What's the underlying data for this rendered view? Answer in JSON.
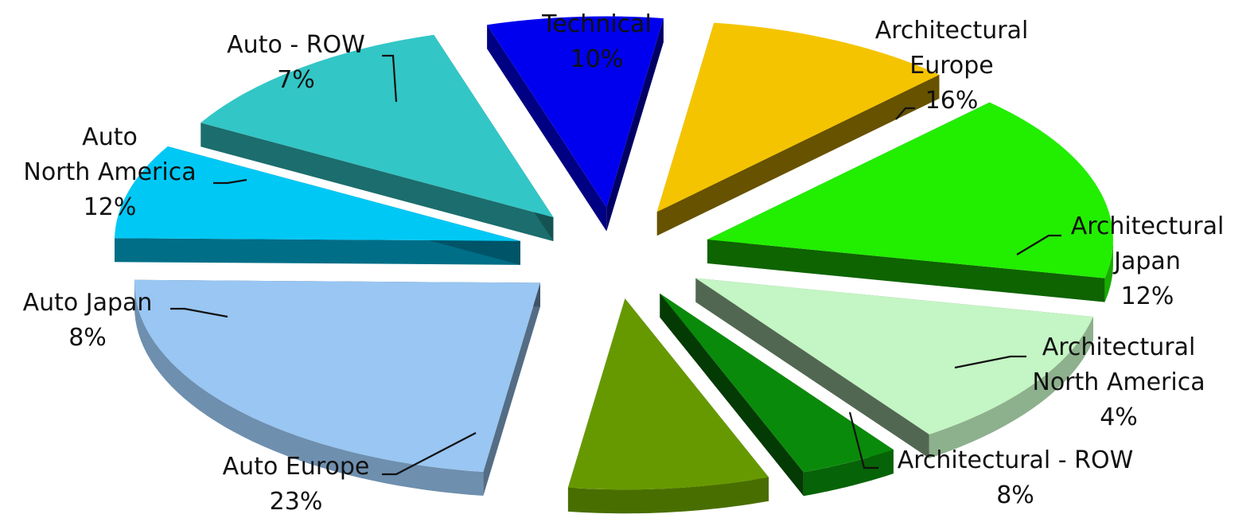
{
  "chart_data": {
    "type": "pie",
    "style": "3d-exploded",
    "title": "",
    "unit": "%",
    "slices": [
      {
        "label": "Technical",
        "value": 10,
        "display": "10%",
        "color": "#F5C400"
      },
      {
        "label": "Architectural Europe",
        "value": 16,
        "display": "16%",
        "color": "#22EE00"
      },
      {
        "label": "Architectural Japan",
        "value": 12,
        "display": "12%",
        "color": "#C4F5C4"
      },
      {
        "label": "Architectural North America",
        "value": 4,
        "display": "4%",
        "color": "#0A8A0A"
      },
      {
        "label": "Architectural - ROW",
        "value": 8,
        "display": "8%",
        "color": "#669900"
      },
      {
        "label": "Auto Europe",
        "value": 23,
        "display": "23%",
        "color": "#99C6F2"
      },
      {
        "label": "Auto Japan",
        "value": 8,
        "display": "8%",
        "color": "#00C8F5"
      },
      {
        "label": "Auto North America",
        "value": 12,
        "display": "12%",
        "color": "#33C6C6"
      },
      {
        "label": "Auto - ROW",
        "value": 7,
        "display": "7%",
        "color": "#0000EE"
      }
    ]
  }
}
